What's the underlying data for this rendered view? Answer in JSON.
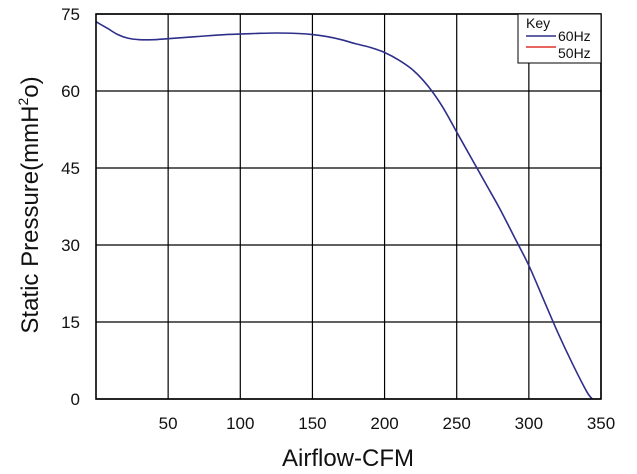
{
  "chart_data": {
    "type": "line",
    "xlabel": "Airflow-CFM",
    "ylabel_main": "Static Pressure(mmH",
    "ylabel_sup": "2",
    "ylabel_tail": "o)",
    "xlim": [
      0,
      350
    ],
    "ylim": [
      0,
      75
    ],
    "xticks": [
      50,
      100,
      150,
      200,
      250,
      300,
      350
    ],
    "yticks": [
      0,
      15,
      30,
      45,
      60,
      75
    ],
    "grid": true,
    "legend": {
      "title": "Key",
      "placement": "top-right",
      "entries": [
        {
          "label": "60Hz",
          "color": "#2e2f8a"
        },
        {
          "label": "50Hz",
          "color": "#e0312a"
        }
      ]
    },
    "series": [
      {
        "name": "60Hz",
        "color": "#2e2f8a",
        "points": [
          [
            0,
            73.5
          ],
          [
            8,
            72.2
          ],
          [
            15,
            71.0
          ],
          [
            22,
            70.3
          ],
          [
            30,
            70.0
          ],
          [
            40,
            70.0
          ],
          [
            50,
            70.2
          ],
          [
            70,
            70.6
          ],
          [
            90,
            71.0
          ],
          [
            110,
            71.2
          ],
          [
            125,
            71.3
          ],
          [
            140,
            71.2
          ],
          [
            150,
            71.0
          ],
          [
            160,
            70.6
          ],
          [
            170,
            70.0
          ],
          [
            180,
            69.2
          ],
          [
            190,
            68.5
          ],
          [
            200,
            67.5
          ],
          [
            210,
            66.0
          ],
          [
            220,
            64.0
          ],
          [
            230,
            61.0
          ],
          [
            240,
            57.0
          ],
          [
            250,
            52.0
          ],
          [
            260,
            47.0
          ],
          [
            270,
            42.0
          ],
          [
            280,
            37.0
          ],
          [
            290,
            31.5
          ],
          [
            300,
            26.0
          ],
          [
            310,
            19.5
          ],
          [
            320,
            13.0
          ],
          [
            330,
            7.0
          ],
          [
            340,
            1.5
          ],
          [
            344,
            0
          ]
        ]
      },
      {
        "name": "50Hz",
        "color": "#e0312a",
        "points": []
      }
    ]
  }
}
